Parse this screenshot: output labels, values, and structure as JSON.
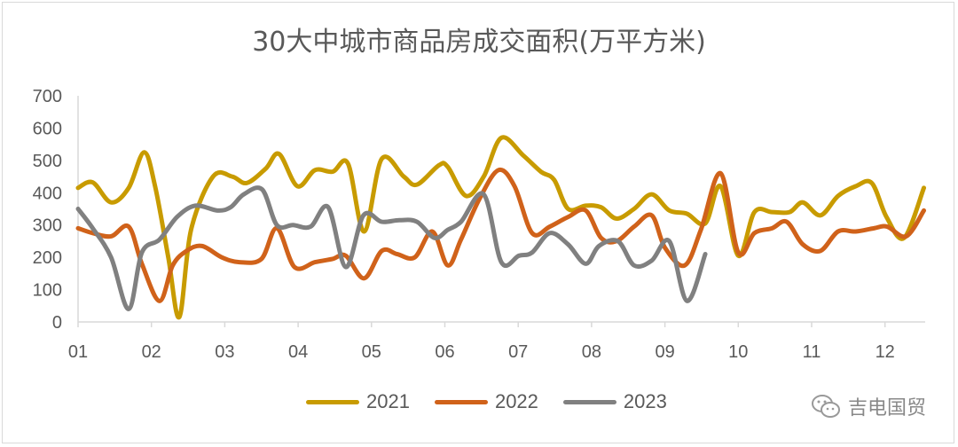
{
  "chart_data": {
    "type": "line",
    "title": "30大中城市商品房成交面积(万平方米)",
    "xlabel": "",
    "ylabel": "",
    "x_tick_labels": [
      "01",
      "02",
      "03",
      "04",
      "05",
      "06",
      "07",
      "08",
      "09",
      "10",
      "11",
      "12"
    ],
    "y_ticks": [
      0,
      100,
      200,
      300,
      400,
      500,
      600,
      700
    ],
    "ylim": [
      0,
      700
    ],
    "grid": false,
    "legend_position": "bottom",
    "series": [
      {
        "name": "2021",
        "color": "#C89B00",
        "points": [
          [
            1.0,
            415
          ],
          [
            1.2,
            432
          ],
          [
            1.45,
            370
          ],
          [
            1.69,
            415
          ],
          [
            1.9,
            525
          ],
          [
            2.05,
            420
          ],
          [
            2.23,
            200
          ],
          [
            2.38,
            15
          ],
          [
            2.54,
            285
          ],
          [
            2.84,
            450
          ],
          [
            3.1,
            450
          ],
          [
            3.3,
            430
          ],
          [
            3.56,
            475
          ],
          [
            3.74,
            520
          ],
          [
            3.99,
            420
          ],
          [
            4.23,
            470
          ],
          [
            4.47,
            465
          ],
          [
            4.68,
            490
          ],
          [
            4.9,
            280
          ],
          [
            5.14,
            505
          ],
          [
            5.44,
            450
          ],
          [
            5.62,
            425
          ],
          [
            5.92,
            485
          ],
          [
            6.04,
            480
          ],
          [
            6.29,
            390
          ],
          [
            6.53,
            450
          ],
          [
            6.77,
            570
          ],
          [
            7.07,
            515
          ],
          [
            7.31,
            465
          ],
          [
            7.49,
            440
          ],
          [
            7.68,
            350
          ],
          [
            7.92,
            360
          ],
          [
            8.13,
            355
          ],
          [
            8.34,
            320
          ],
          [
            8.58,
            350
          ],
          [
            8.82,
            395
          ],
          [
            9.06,
            345
          ],
          [
            9.3,
            335
          ],
          [
            9.55,
            305
          ],
          [
            9.76,
            420
          ],
          [
            10.0,
            205
          ],
          [
            10.22,
            340
          ],
          [
            10.46,
            340
          ],
          [
            10.7,
            340
          ],
          [
            10.88,
            370
          ],
          [
            11.12,
            330
          ],
          [
            11.36,
            390
          ],
          [
            11.6,
            420
          ],
          [
            11.82,
            430
          ],
          [
            12.02,
            325
          ],
          [
            12.26,
            260
          ],
          [
            12.53,
            415
          ]
        ]
      },
      {
        "name": "2022",
        "color": "#D0621A",
        "points": [
          [
            1.0,
            290
          ],
          [
            1.2,
            275
          ],
          [
            1.45,
            265
          ],
          [
            1.69,
            295
          ],
          [
            1.87,
            180
          ],
          [
            2.11,
            65
          ],
          [
            2.29,
            175
          ],
          [
            2.48,
            220
          ],
          [
            2.69,
            235
          ],
          [
            2.96,
            200
          ],
          [
            3.2,
            185
          ],
          [
            3.5,
            195
          ],
          [
            3.71,
            290
          ],
          [
            3.95,
            170
          ],
          [
            4.23,
            185
          ],
          [
            4.47,
            195
          ],
          [
            4.65,
            205
          ],
          [
            4.9,
            135
          ],
          [
            5.14,
            220
          ],
          [
            5.35,
            210
          ],
          [
            5.59,
            200
          ],
          [
            5.83,
            280
          ],
          [
            6.04,
            175
          ],
          [
            6.22,
            255
          ],
          [
            6.47,
            380
          ],
          [
            6.73,
            470
          ],
          [
            6.95,
            420
          ],
          [
            7.19,
            275
          ],
          [
            7.43,
            295
          ],
          [
            7.68,
            325
          ],
          [
            7.92,
            345
          ],
          [
            8.13,
            260
          ],
          [
            8.34,
            250
          ],
          [
            8.58,
            295
          ],
          [
            8.82,
            330
          ],
          [
            9.0,
            230
          ],
          [
            9.27,
            175
          ],
          [
            9.49,
            285
          ],
          [
            9.76,
            460
          ],
          [
            10.0,
            215
          ],
          [
            10.22,
            275
          ],
          [
            10.46,
            290
          ],
          [
            10.66,
            310
          ],
          [
            10.88,
            240
          ],
          [
            11.12,
            220
          ],
          [
            11.36,
            280
          ],
          [
            11.6,
            280
          ],
          [
            11.85,
            290
          ],
          [
            12.03,
            295
          ],
          [
            12.29,
            265
          ],
          [
            12.53,
            345
          ]
        ]
      },
      {
        "name": "2023",
        "color": "#808080",
        "points": [
          [
            1.0,
            350
          ],
          [
            1.2,
            290
          ],
          [
            1.45,
            200
          ],
          [
            1.69,
            40
          ],
          [
            1.87,
            215
          ],
          [
            2.11,
            255
          ],
          [
            2.35,
            325
          ],
          [
            2.6,
            360
          ],
          [
            2.9,
            345
          ],
          [
            3.08,
            355
          ],
          [
            3.26,
            395
          ],
          [
            3.51,
            410
          ],
          [
            3.71,
            300
          ],
          [
            3.93,
            300
          ],
          [
            4.17,
            295
          ],
          [
            4.41,
            355
          ],
          [
            4.65,
            170
          ],
          [
            4.89,
            330
          ],
          [
            5.14,
            310
          ],
          [
            5.38,
            315
          ],
          [
            5.62,
            310
          ],
          [
            5.86,
            260
          ],
          [
            6.04,
            285
          ],
          [
            6.22,
            310
          ],
          [
            6.53,
            395
          ],
          [
            6.77,
            185
          ],
          [
            7.01,
            205
          ],
          [
            7.19,
            215
          ],
          [
            7.43,
            275
          ],
          [
            7.68,
            240
          ],
          [
            7.92,
            180
          ],
          [
            8.1,
            235
          ],
          [
            8.36,
            250
          ],
          [
            8.58,
            175
          ],
          [
            8.82,
            190
          ],
          [
            9.06,
            250
          ],
          [
            9.3,
            65
          ],
          [
            9.55,
            210
          ]
        ]
      }
    ]
  },
  "watermark": {
    "text": "吉电国贸",
    "icon": "wechat-icon"
  }
}
